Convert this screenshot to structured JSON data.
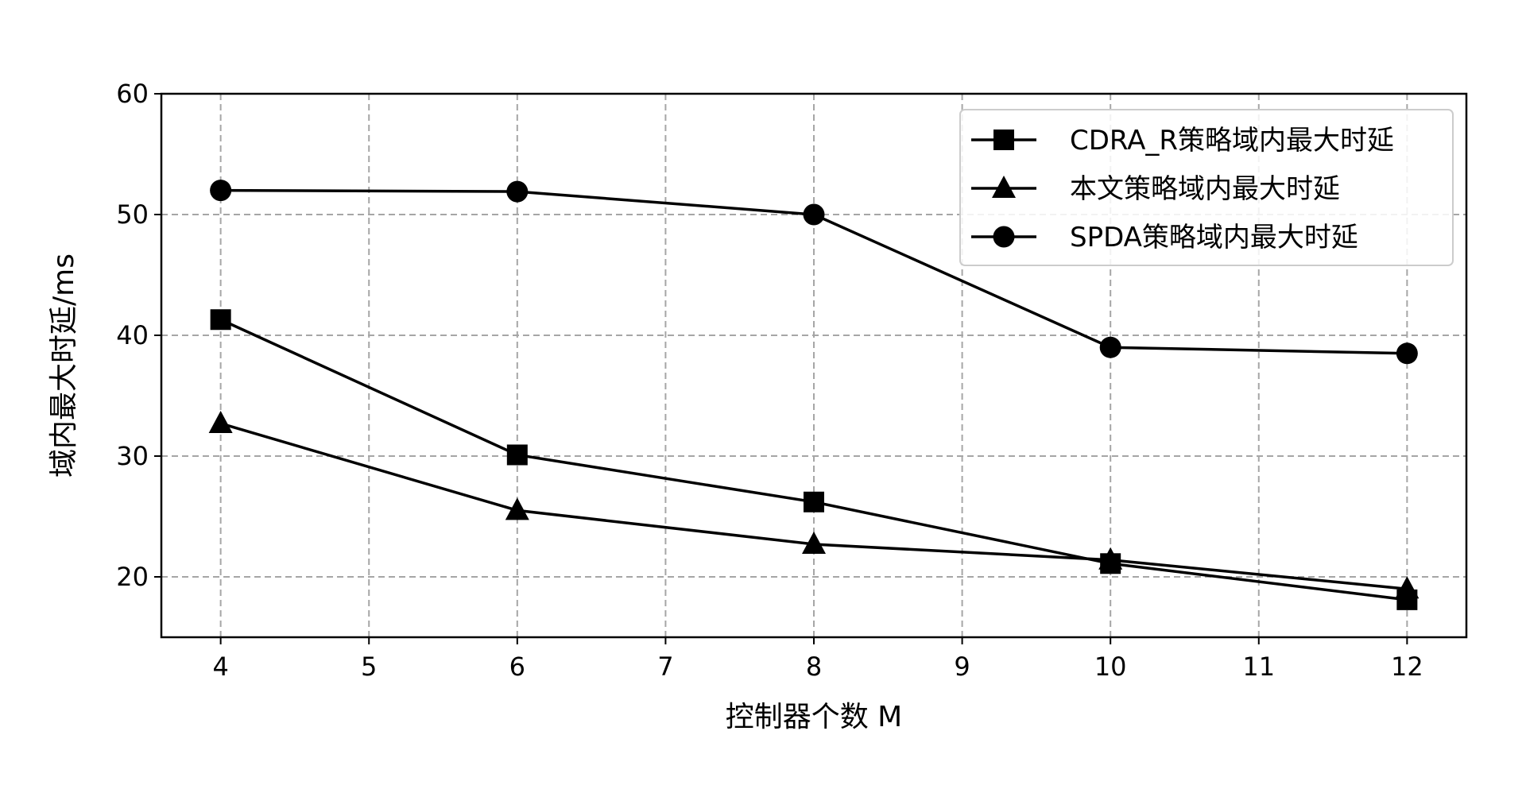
{
  "chart_data": {
    "type": "line",
    "title": "",
    "xlabel": "控制器个数 M",
    "ylabel": "域内最大时延/ms",
    "x": [
      4,
      6,
      8,
      10,
      12
    ],
    "xlim": [
      3.6,
      12.4
    ],
    "ylim": [
      15,
      60
    ],
    "xticks": [
      "4",
      "5",
      "6",
      "7",
      "8",
      "9",
      "10",
      "11",
      "12"
    ],
    "yticks": [
      "20",
      "30",
      "40",
      "50",
      "60"
    ],
    "grid": true,
    "legend_position": "top-right",
    "series": [
      {
        "name": "CDRA_R策略域内最大时延",
        "marker": "square",
        "color": "#000000",
        "values": [
          41.3,
          30.1,
          26.2,
          21.1,
          18.1
        ]
      },
      {
        "name": "本文策略域内最大时延",
        "marker": "triangle",
        "color": "#000000",
        "values": [
          32.7,
          25.5,
          22.7,
          21.4,
          19.0
        ]
      },
      {
        "name": "SPDA策略域内最大时延",
        "marker": "circle",
        "color": "#000000",
        "values": [
          52.0,
          51.9,
          50.0,
          39.0,
          38.5
        ]
      }
    ]
  }
}
